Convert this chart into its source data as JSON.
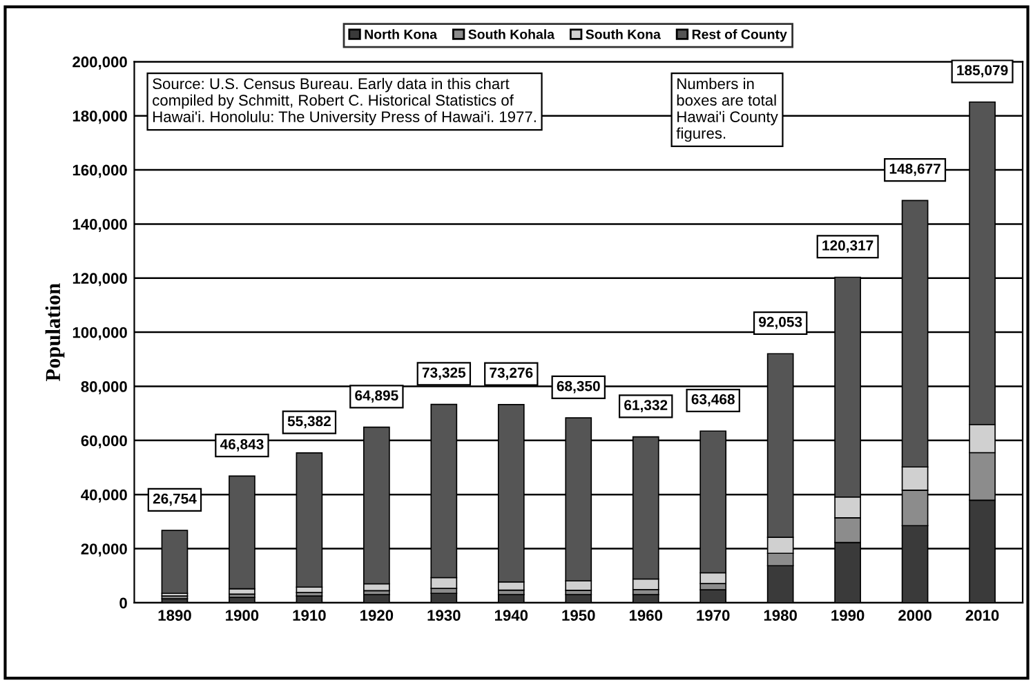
{
  "chart_data": {
    "type": "bar",
    "stacked": true,
    "ylabel": "Population",
    "categories": [
      "1890",
      "1900",
      "1910",
      "1920",
      "1930",
      "1940",
      "1950",
      "1960",
      "1970",
      "1980",
      "1990",
      "2000",
      "2010"
    ],
    "series": [
      {
        "name": "North Kona",
        "color": "#3a3a3a",
        "values": [
          1500,
          2000,
          2500,
          3000,
          3500,
          3000,
          3000,
          3000,
          4800,
          13700,
          22300,
          28500,
          37900
        ]
      },
      {
        "name": "South Kohala",
        "color": "#8c8c8c",
        "values": [
          1000,
          1200,
          1300,
          1500,
          1800,
          1700,
          1600,
          1900,
          2300,
          4600,
          9100,
          13100,
          17600
        ]
      },
      {
        "name": "South Kona",
        "color": "#d0d0d0",
        "values": [
          1000,
          2000,
          2000,
          2500,
          4000,
          3000,
          3500,
          3900,
          4000,
          5900,
          7700,
          8600,
          10400
        ]
      },
      {
        "name": "Rest of County",
        "color": "#555555",
        "values": [
          23254,
          41643,
          49582,
          57895,
          64025,
          65576,
          60250,
          52532,
          52368,
          67853,
          81217,
          98477,
          119179
        ]
      }
    ],
    "totals": [
      "26,754",
      "46,843",
      "55,382",
      "64,895",
      "73,325",
      "73,276",
      "68,350",
      "61,332",
      "63,468",
      "92,053",
      "120,317",
      "148,677",
      "185,079"
    ],
    "ylim": [
      0,
      200000
    ],
    "yticks": [
      {
        "value": 0,
        "label": "0"
      },
      {
        "value": 20000,
        "label": "20,000"
      },
      {
        "value": 40000,
        "label": "40,000"
      },
      {
        "value": 60000,
        "label": "60,000"
      },
      {
        "value": 80000,
        "label": "80,000"
      },
      {
        "value": 100000,
        "label": "100,000"
      },
      {
        "value": 120000,
        "label": "120,000"
      },
      {
        "value": 140000,
        "label": "140,000"
      },
      {
        "value": 160000,
        "label": "160,000"
      },
      {
        "value": 180000,
        "label": "180,000"
      },
      {
        "value": 200000,
        "label": "200,000"
      }
    ],
    "grid": "y",
    "legend": "top",
    "annotations": [
      "Source: U.S. Census Bureau. Early data in this chart\ncompiled by Schmitt, Robert C. Historical Statistics of\nHawai'i. Honolulu: The University Press of Hawai'i. 1977.",
      "Numbers in\nboxes are total\nHawai'i County\nfigures."
    ]
  }
}
